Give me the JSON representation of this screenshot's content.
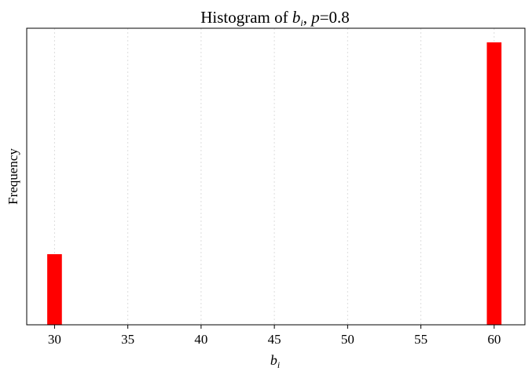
{
  "chart_data": {
    "type": "bar",
    "title": {
      "prefix": "Histogram of ",
      "var_base": "b",
      "var_sub": "i",
      "sep": ", ",
      "param": "p",
      "param_value": "=0.8"
    },
    "xlabel": {
      "base": "b",
      "sub": "i"
    },
    "ylabel": "Frequency",
    "xlim": [
      28.1,
      62.1
    ],
    "ylim": [
      0,
      1.05
    ],
    "xticks": [
      30,
      35,
      40,
      45,
      50,
      55,
      60
    ],
    "yticks": [],
    "bars": [
      {
        "x0": 29.5,
        "x1": 30.5,
        "value": 0.25
      },
      {
        "x0": 59.5,
        "x1": 60.5,
        "value": 1.0
      }
    ],
    "bar_color": "#ff0000",
    "grid": {
      "x": true,
      "y": false,
      "style": "dotted",
      "color": "#dddddd"
    },
    "frame_color": "#000000"
  }
}
